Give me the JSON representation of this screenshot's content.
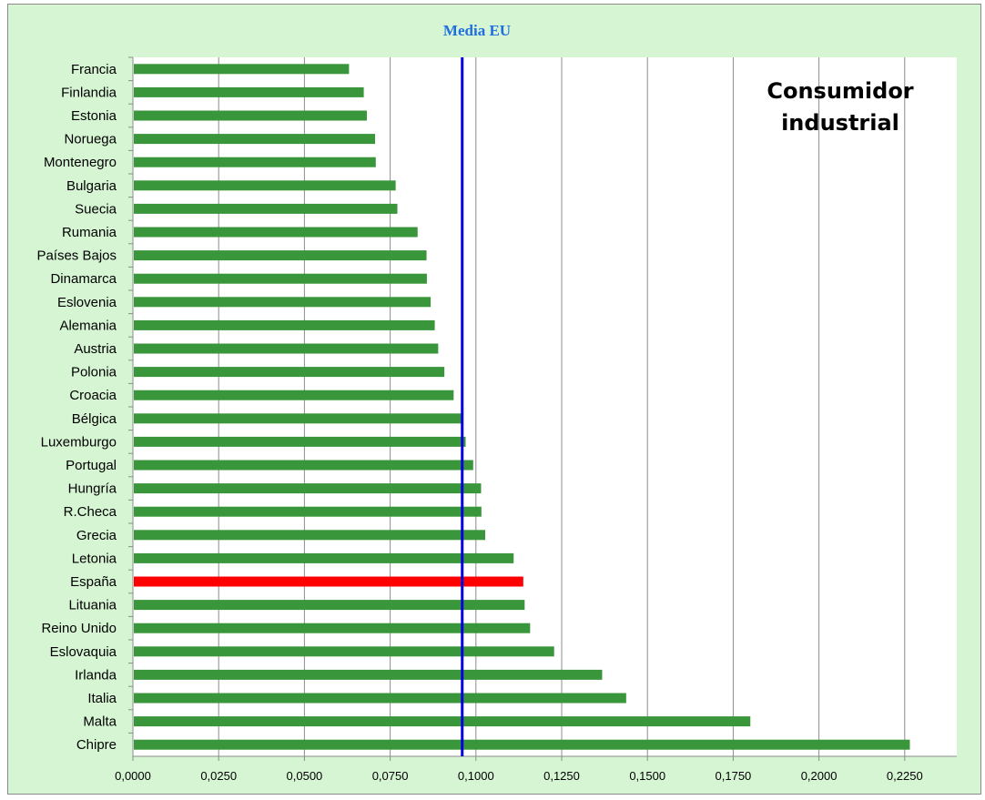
{
  "chart_data": {
    "type": "bar",
    "orientation": "horizontal",
    "categories": [
      "Francia",
      "Finlandia",
      "Estonia",
      "Noruega",
      "Montenegro",
      "Bulgaria",
      "Suecia",
      "Rumania",
      "Países Bajos",
      "Dinamarca",
      "Eslovenia",
      "Alemania",
      "Austria",
      "Polonia",
      "Croacia",
      "Bélgica",
      "Luxemburgo",
      "Portugal",
      "Hungría",
      "R.Checa",
      "Grecia",
      "Letonia",
      "España",
      "Lituania",
      "Reino Unido",
      "Eslovaquia",
      "Irlanda",
      "Italia",
      "Malta",
      "Chipre"
    ],
    "values": [
      0.063,
      0.0673,
      0.0682,
      0.0706,
      0.0708,
      0.0766,
      0.0771,
      0.083,
      0.0856,
      0.0857,
      0.0868,
      0.088,
      0.089,
      0.0908,
      0.0935,
      0.0958,
      0.097,
      0.0992,
      0.1015,
      0.1016,
      0.1027,
      0.111,
      0.1138,
      0.1142,
      0.1158,
      0.1228,
      0.1368,
      0.1438,
      0.18,
      0.2265
    ],
    "highlight": "España",
    "x_ticks": [
      "0,0000",
      "0,0250",
      "0,0500",
      "0,0750",
      "0,1000",
      "0,1250",
      "0,1500",
      "0,1750",
      "0,2000",
      "0,2250"
    ],
    "xlim": [
      0,
      0.24
    ],
    "grid": "vertical major gridlines",
    "reference_line": {
      "label": "Media EU",
      "value": 0.096
    },
    "annotation": [
      "Consumidor",
      "industrial"
    ],
    "colors": {
      "bar": "#3a963a",
      "highlight": "#ff0000",
      "reference": "#0000e0",
      "background": "#d6f5d3",
      "plot": "#ffffff",
      "ref_label": "#1f6fe0"
    }
  }
}
